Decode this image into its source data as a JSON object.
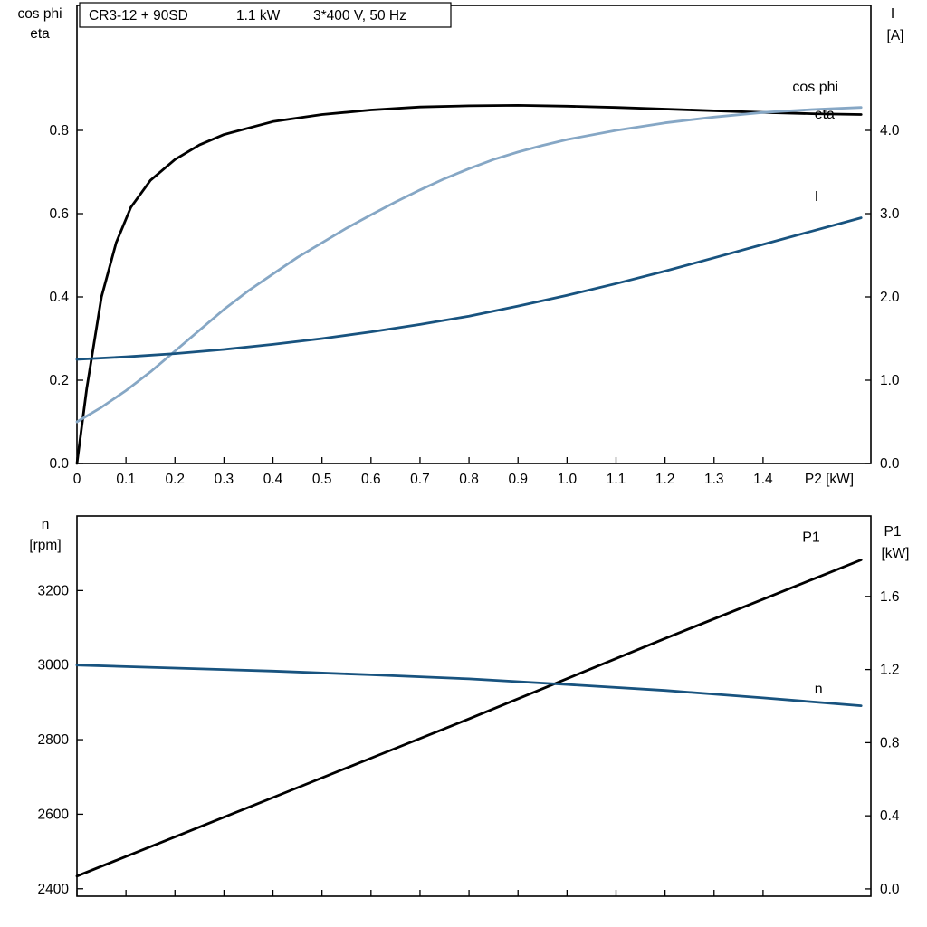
{
  "title_box": {
    "model": "CR3-12 + 90SD",
    "power": "1.1 kW",
    "supply": "3*400 V, 50 Hz"
  },
  "colors": {
    "frame": "#000000",
    "eta": "#000000",
    "cos_phi": "#86a7c5",
    "current": "#18537f",
    "p1": "#000000",
    "n": "#18537f"
  },
  "chart_data": [
    {
      "type": "line",
      "name": "motor-electrical-curves",
      "x_label": "P2 [kW]",
      "x_range": [
        0,
        1.62
      ],
      "x_ticks": {
        "values": [
          0,
          0.1,
          0.2,
          0.3,
          0.4,
          0.5,
          0.6,
          0.7,
          0.8,
          0.9,
          1.0,
          1.1,
          1.2,
          1.3,
          1.4
        ],
        "labels": [
          "0",
          "0.1",
          "0.2",
          "0.3",
          "0.4",
          "0.5",
          "0.6",
          "0.7",
          "0.8",
          "0.9",
          "1.0",
          "1.1",
          "1.2",
          "1.3",
          "1.4"
        ]
      },
      "left_axis": {
        "header_lines": [
          "cos phi",
          "eta"
        ],
        "range": [
          0,
          1.1
        ],
        "tick_values": [
          0,
          0.2,
          0.4,
          0.6,
          0.8
        ],
        "tick_labels": [
          "0.0",
          "0.2",
          "0.4",
          "0.6",
          "0.8"
        ]
      },
      "right_axis": {
        "header_lines": [
          "I",
          "[A]"
        ],
        "range": [
          0,
          5.5
        ],
        "tick_values": [
          0,
          1,
          2,
          3,
          4
        ],
        "tick_labels": [
          "0.0",
          "1.0",
          "2.0",
          "3.0",
          "4.0"
        ]
      },
      "series": [
        {
          "id": "eta",
          "label": "eta",
          "axis": "left",
          "color": "#000000",
          "label_at": [
            1.505,
            0.828
          ],
          "x": [
            0,
            0.02,
            0.05,
            0.08,
            0.11,
            0.15,
            0.2,
            0.25,
            0.3,
            0.4,
            0.5,
            0.6,
            0.7,
            0.8,
            0.9,
            1.0,
            1.1,
            1.2,
            1.3,
            1.4,
            1.5,
            1.6
          ],
          "y": [
            0,
            0.18,
            0.4,
            0.53,
            0.615,
            0.68,
            0.73,
            0.765,
            0.79,
            0.821,
            0.838,
            0.849,
            0.856,
            0.859,
            0.86,
            0.858,
            0.855,
            0.851,
            0.847,
            0.843,
            0.84,
            0.838
          ]
        },
        {
          "id": "cos-phi",
          "label": "cos phi",
          "axis": "left",
          "color": "#86a7c5",
          "label_at": [
            1.46,
            0.893
          ],
          "x": [
            0,
            0.05,
            0.1,
            0.15,
            0.2,
            0.25,
            0.3,
            0.35,
            0.4,
            0.45,
            0.5,
            0.55,
            0.6,
            0.65,
            0.7,
            0.75,
            0.8,
            0.85,
            0.9,
            0.95,
            1.0,
            1.1,
            1.2,
            1.3,
            1.4,
            1.5,
            1.6
          ],
          "y": [
            0.1,
            0.135,
            0.175,
            0.22,
            0.27,
            0.32,
            0.37,
            0.415,
            0.455,
            0.495,
            0.53,
            0.565,
            0.597,
            0.628,
            0.657,
            0.684,
            0.708,
            0.73,
            0.748,
            0.764,
            0.778,
            0.8,
            0.818,
            0.832,
            0.843,
            0.85,
            0.855
          ]
        },
        {
          "id": "current",
          "label": "I",
          "axis": "right",
          "color": "#18537f",
          "label_at": [
            1.505,
            3.15
          ],
          "x": [
            0,
            0.1,
            0.2,
            0.3,
            0.4,
            0.5,
            0.6,
            0.7,
            0.8,
            0.9,
            1.0,
            1.1,
            1.2,
            1.3,
            1.4,
            1.5,
            1.6
          ],
          "y": [
            1.25,
            1.28,
            1.32,
            1.37,
            1.43,
            1.5,
            1.58,
            1.67,
            1.77,
            1.89,
            2.02,
            2.16,
            2.31,
            2.47,
            2.63,
            2.79,
            2.95
          ]
        }
      ]
    },
    {
      "type": "line",
      "name": "speed-and-input-power-curves",
      "x_label": "",
      "x_range": [
        0,
        1.62
      ],
      "x_ticks": {
        "values": [
          0,
          0.1,
          0.2,
          0.3,
          0.4,
          0.5,
          0.6,
          0.7,
          0.8,
          0.9,
          1.0,
          1.1,
          1.2,
          1.3,
          1.4
        ],
        "labels": []
      },
      "left_axis": {
        "header_lines": [
          "n",
          "[rpm]"
        ],
        "range": [
          2380,
          3400
        ],
        "tick_values": [
          2400,
          2600,
          2800,
          3000,
          3200
        ],
        "tick_labels": [
          "2400",
          "2600",
          "2800",
          "3000",
          "3200"
        ]
      },
      "right_axis": {
        "header_lines": [
          "P1",
          "[kW]"
        ],
        "range": [
          -0.04,
          2.04
        ],
        "tick_values": [
          0.0,
          0.4,
          0.8,
          1.2,
          1.6
        ],
        "tick_labels": [
          "0.0",
          "0.4",
          "0.8",
          "1.2",
          "1.6"
        ]
      },
      "series": [
        {
          "id": "p1",
          "label": "P1",
          "axis": "right",
          "color": "#000000",
          "label_at": [
            1.48,
            1.9
          ],
          "x": [
            0,
            0.2,
            0.4,
            0.6,
            0.8,
            1.0,
            1.2,
            1.4,
            1.6
          ],
          "y": [
            0.07,
            0.285,
            0.5,
            0.715,
            0.93,
            1.15,
            1.37,
            1.585,
            1.8
          ]
        },
        {
          "id": "n",
          "label": "n",
          "axis": "left",
          "color": "#18537f",
          "label_at": [
            1.505,
            2924
          ],
          "x": [
            0,
            0.2,
            0.4,
            0.6,
            0.8,
            1.0,
            1.2,
            1.4,
            1.6
          ],
          "y": [
            3000,
            2992,
            2984,
            2974,
            2963,
            2948,
            2932,
            2912,
            2891
          ]
        }
      ]
    }
  ]
}
